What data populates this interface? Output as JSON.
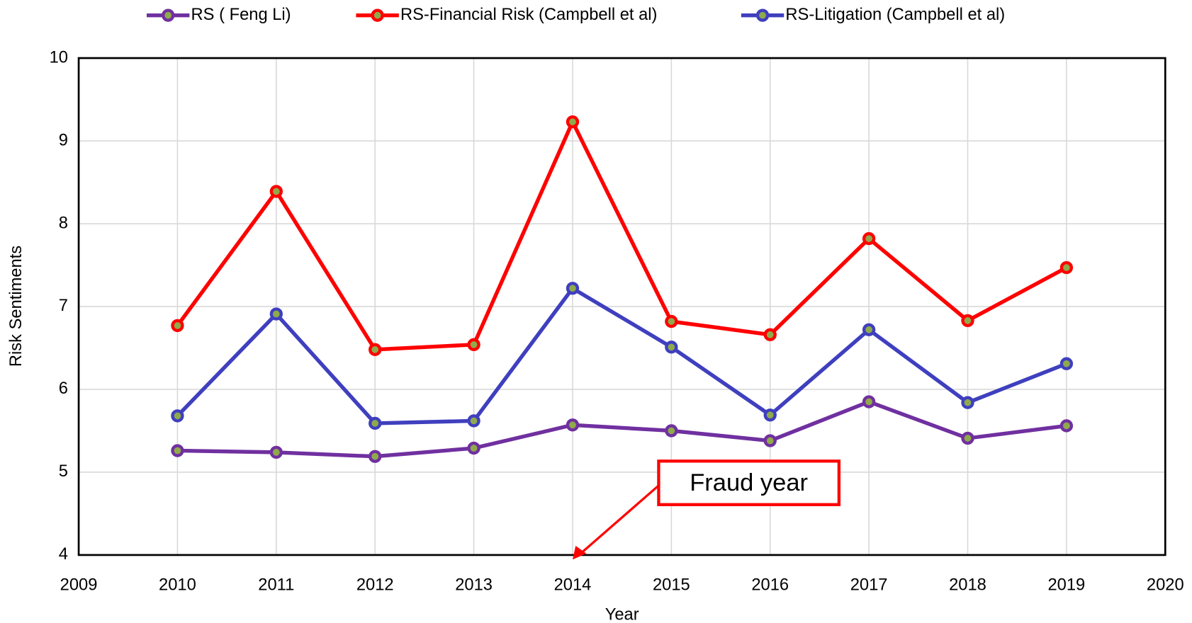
{
  "chart_data": {
    "type": "line",
    "xlabel": "Year",
    "ylabel": "Risk Sentiments",
    "x": [
      2010,
      2011,
      2012,
      2013,
      2014,
      2015,
      2016,
      2017,
      2018,
      2019
    ],
    "series": [
      {
        "name": "RS ( Feng Li)",
        "color": "#7030a0",
        "values": [
          5.26,
          5.24,
          5.19,
          5.29,
          5.57,
          5.5,
          5.38,
          5.85,
          5.41,
          5.56
        ]
      },
      {
        "name": "RS-Financial Risk (Campbell et al)",
        "color": "#ff0000",
        "values": [
          6.77,
          8.39,
          6.48,
          6.54,
          9.23,
          6.82,
          6.66,
          7.82,
          6.83,
          7.47
        ]
      },
      {
        "name": "RS-Litigation (Campbell et al)",
        "color": "#3f3fbf",
        "values": [
          5.68,
          6.91,
          5.59,
          5.62,
          7.22,
          6.51,
          5.69,
          6.72,
          5.84,
          6.31
        ]
      }
    ],
    "xlim": [
      2009,
      2020
    ],
    "xticks": [
      2009,
      2010,
      2011,
      2012,
      2013,
      2014,
      2015,
      2016,
      2017,
      2018,
      2019,
      2020
    ],
    "ylim": [
      4,
      10
    ],
    "yticks": [
      4,
      5,
      6,
      7,
      8,
      9,
      10
    ],
    "grid": true,
    "legend": "top",
    "annotation": {
      "text": "Fraud year",
      "x": 2014
    }
  }
}
